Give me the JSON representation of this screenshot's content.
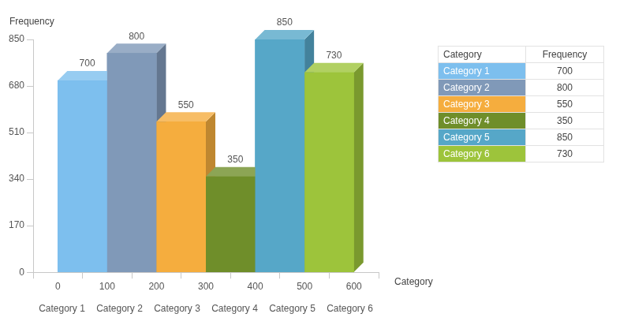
{
  "chart_data": {
    "type": "histogram",
    "x_label": "Category",
    "y_label": "Frequency",
    "bins": [
      0,
      100,
      200,
      300,
      400,
      500,
      600
    ],
    "categories": [
      "Category 1",
      "Category 2",
      "Category 3",
      "Category 4",
      "Category 5",
      "Category 6"
    ],
    "values": [
      700,
      800,
      550,
      350,
      850,
      730
    ],
    "colors": [
      "#7dbfee",
      "#8099b8",
      "#f5ad3e",
      "#6f8e2a",
      "#56a7c8",
      "#9dc43b"
    ],
    "xlim": [
      0,
      600
    ],
    "xticks": [
      0,
      100,
      200,
      300,
      400,
      500,
      600
    ],
    "ylim": [
      0,
      850
    ],
    "yticks": [
      0,
      170,
      340,
      510,
      680,
      850
    ],
    "grid": false,
    "data_labels": true
  },
  "table": {
    "header": [
      "Category",
      "Frequency"
    ],
    "rows": [
      [
        "Category 1",
        700
      ],
      [
        "Category 2",
        800
      ],
      [
        "Category 3",
        550
      ],
      [
        "Category 4",
        350
      ],
      [
        "Category 5",
        850
      ],
      [
        "Category 6",
        730
      ]
    ]
  }
}
